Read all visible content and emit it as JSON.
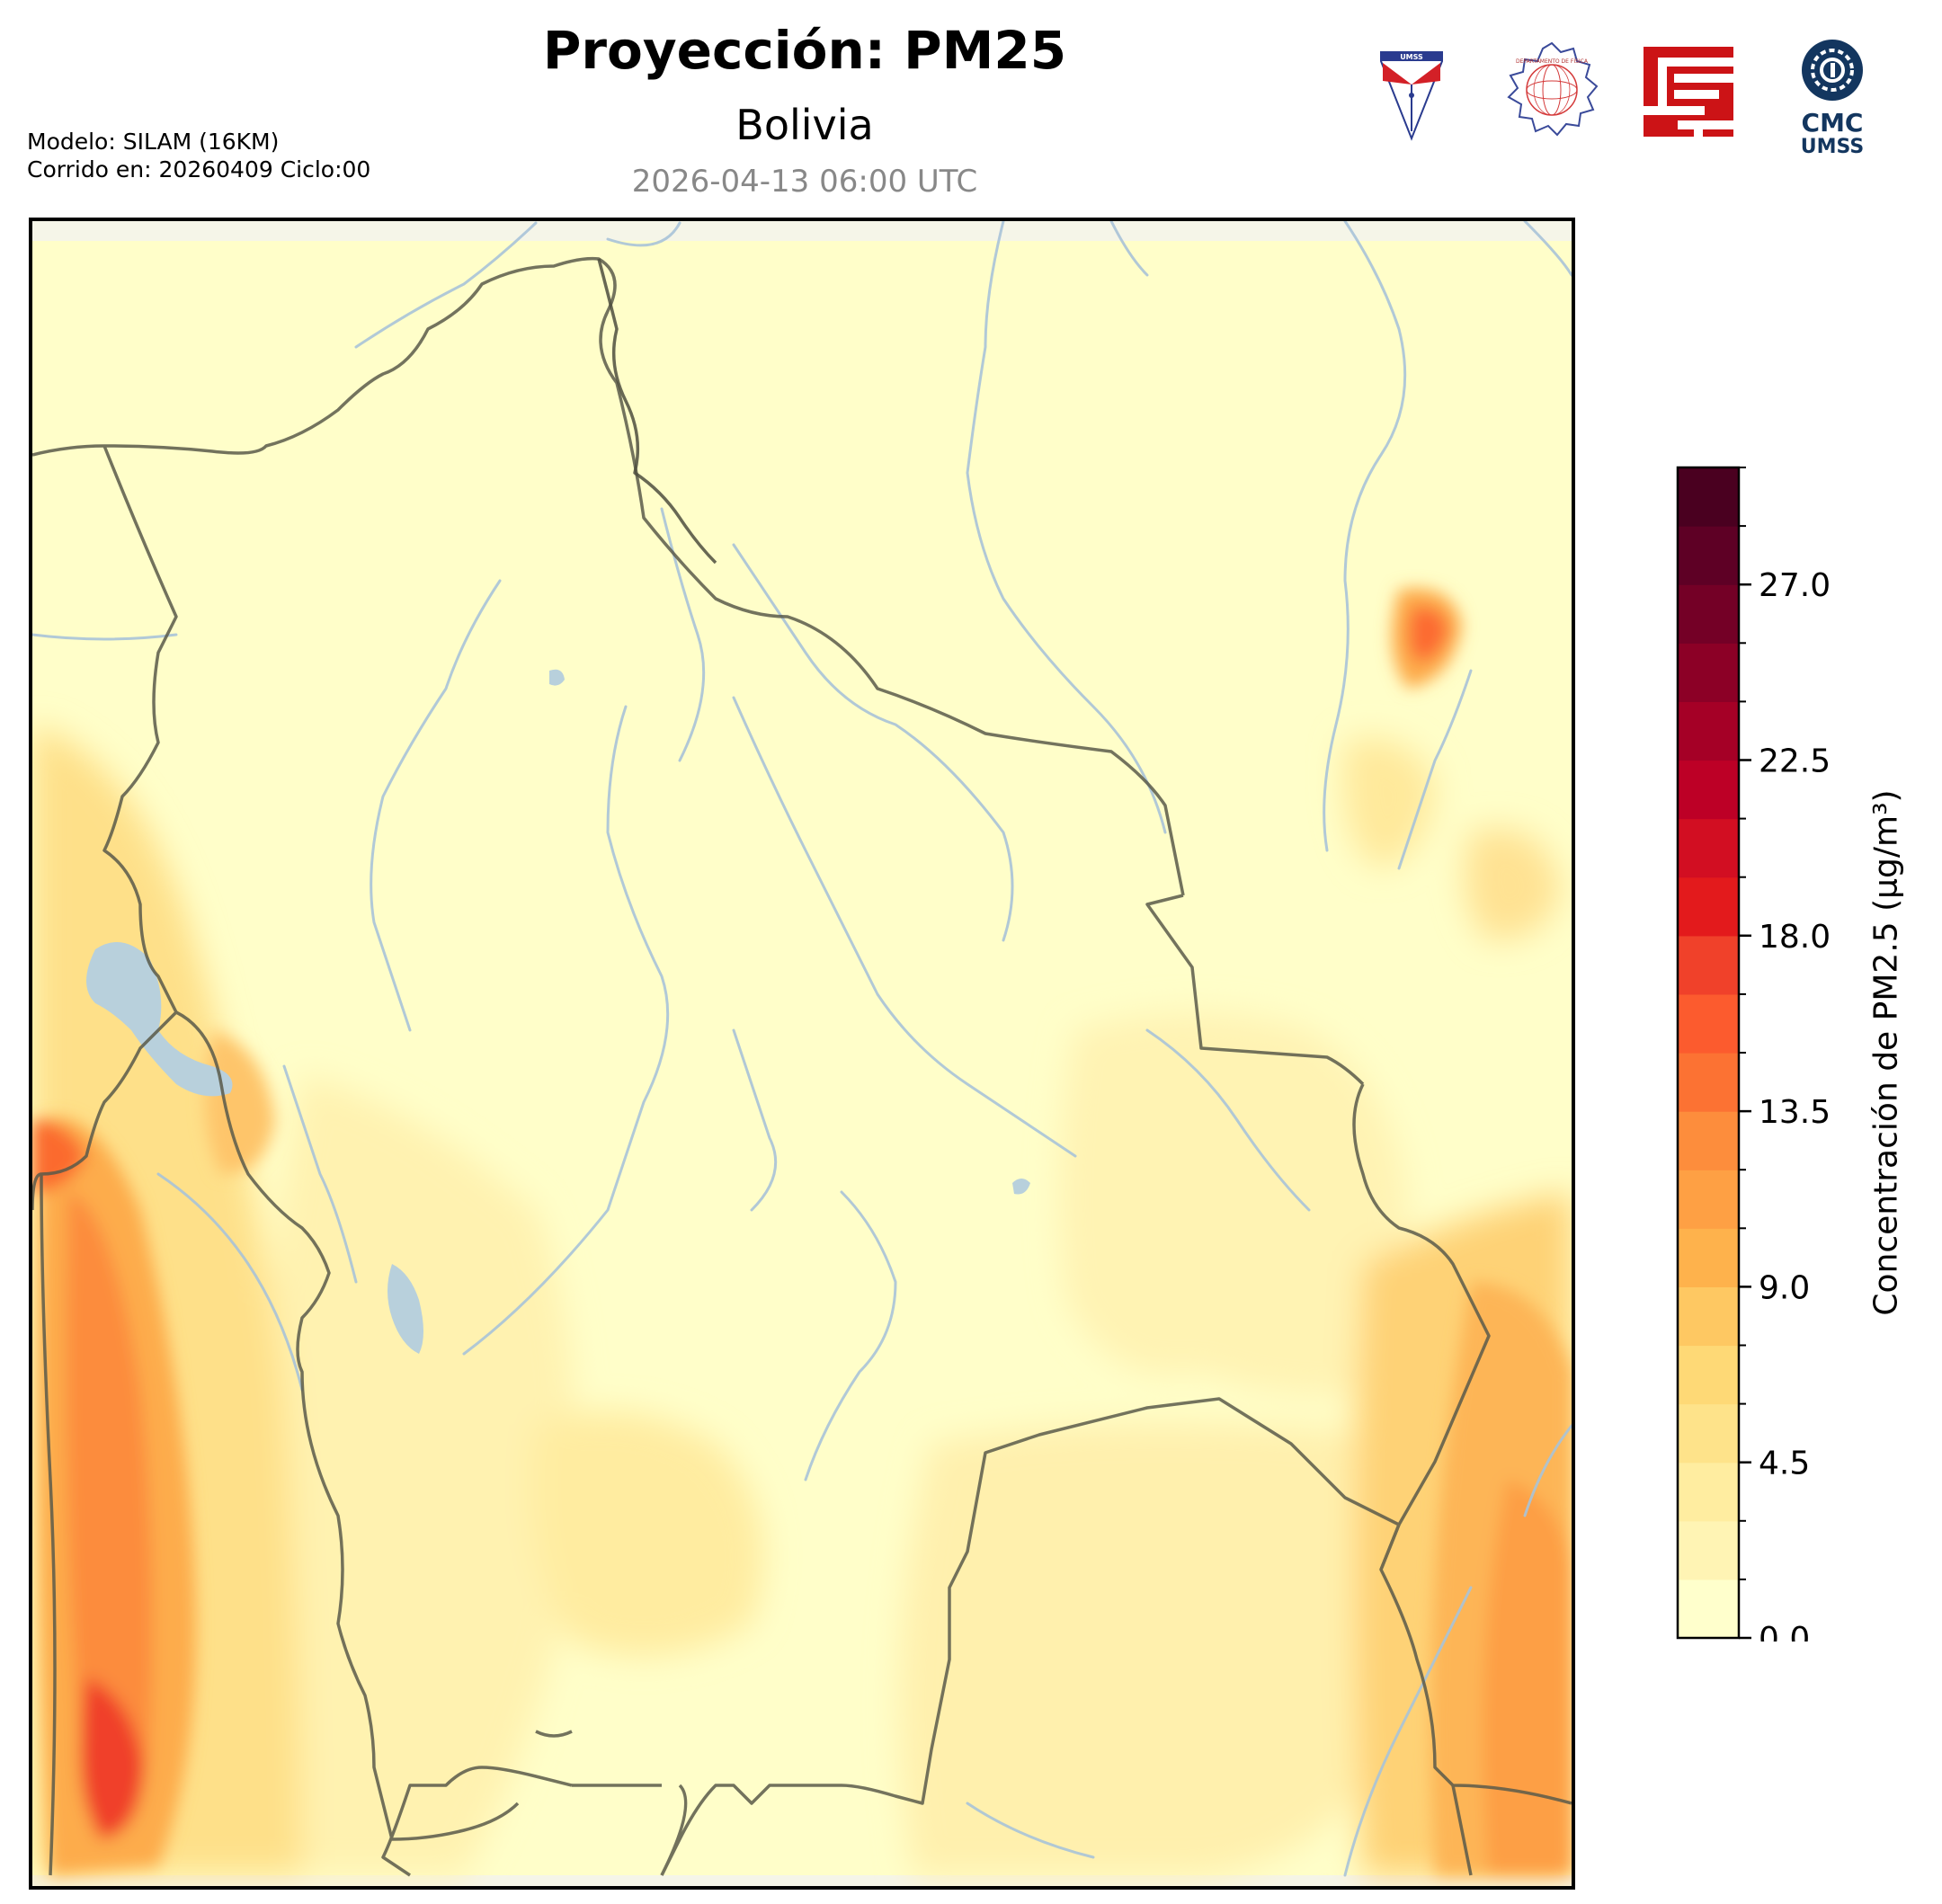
{
  "header": {
    "title": "Proyección: PM25",
    "subtitle": "Bolivia",
    "timestamp": "2026-04-13 06:00 UTC",
    "model_line": "Modelo: SILAM (16KM)",
    "run_line": "Corrido en: 20260409 Ciclo:00"
  },
  "logos": [
    {
      "name": "umss-shield-logo",
      "text": "UMSS"
    },
    {
      "name": "departamento-fisica-seal-logo",
      "text": "DEPARTAMENTO DE FÍSICA"
    },
    {
      "name": "red-geometric-logo",
      "text": ""
    },
    {
      "name": "cmc-umss-logo",
      "text_top": "CMC",
      "text_bottom": "UMSS"
    }
  ],
  "colorbar": {
    "label": "Concentración de PM2.5 (µg/m³)",
    "ticks": [
      "0.0",
      "4.5",
      "9.0",
      "13.5",
      "18.0",
      "22.5",
      "27.0"
    ],
    "tick_values": [
      0,
      4.5,
      9,
      13.5,
      18,
      22.5,
      27
    ],
    "min": 0,
    "max": 30,
    "level_step": 1.5,
    "colors": [
      "#ffffcc",
      "#fff4b4",
      "#ffeda0",
      "#fee38a",
      "#fed976",
      "#fec862",
      "#feb24c",
      "#fea044",
      "#fd8d3c",
      "#fc7233",
      "#fc5b2e",
      "#f0412a",
      "#e31a1c",
      "#d20e22",
      "#bd0026",
      "#a50026",
      "#8c0026",
      "#740026",
      "#5e0025",
      "#4a0020"
    ]
  },
  "map": {
    "region": "Bolivia",
    "base_color": "#fffec9",
    "border_color": "#5a5a4a",
    "river_color": "#a9c3d8",
    "lake_color": "#b8d0dc"
  }
}
